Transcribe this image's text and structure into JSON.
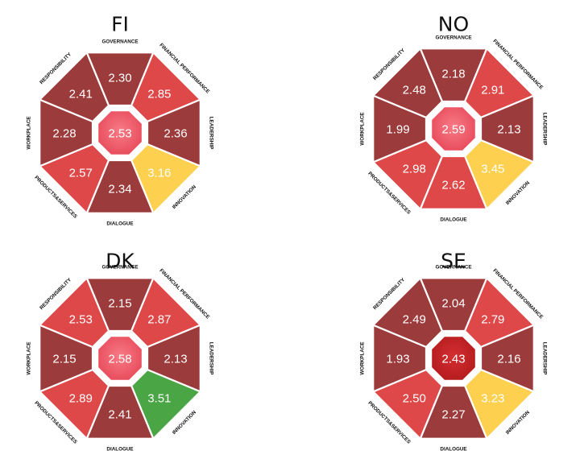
{
  "chart_data": [
    {
      "type": "octagon-score",
      "title": "FI",
      "center": 2.53,
      "dimensions": [
        "GOVERNANCE",
        "FINANCIAL PERFORMANCE",
        "LEADERSHIP",
        "INNOVATION",
        "DIALOGUE",
        "PRODUCTS&SERVICES",
        "WORKPLACE",
        "RESPONSIBILITY"
      ],
      "values": [
        "2.30",
        "2.85",
        "2.36",
        "3.16",
        "2.34",
        "2.57",
        "2.28",
        "2.41"
      ]
    },
    {
      "type": "octagon-score",
      "title": "NO",
      "center": 2.59,
      "dimensions": [
        "GOVERNANCE",
        "FINANCIAL PERFORMANCE",
        "LEADERSHIP",
        "INNOVATION",
        "DIALOGUE",
        "PRODUCTS&SERVICES",
        "WORKPLACE",
        "RESPONSIBILITY"
      ],
      "values": [
        "2.18",
        "2.91",
        "2.13",
        "3.45",
        "2.62",
        "2.98",
        "1.99",
        "2.48"
      ]
    },
    {
      "type": "octagon-score",
      "title": "DK",
      "center": 2.58,
      "dimensions": [
        "GOVERNANCE",
        "FINANCIAL PERFORMANCE",
        "LEADERSHIP",
        "INNOVATION",
        "DIALOGUE",
        "PRODUCTS&SERVICES",
        "WORKPLACE",
        "RESPONSIBILITY"
      ],
      "values": [
        "2.15",
        "2.87",
        "2.13",
        "3.51",
        "2.41",
        "2.89",
        "2.15",
        "2.53"
      ]
    },
    {
      "type": "octagon-score",
      "title": "SE",
      "center": 2.43,
      "dimensions": [
        "GOVERNANCE",
        "FINANCIAL PERFORMANCE",
        "LEADERSHIP",
        "INNOVATION",
        "DIALOGUE",
        "PRODUCTS&SERVICES",
        "WORKPLACE",
        "RESPONSIBILITY"
      ],
      "values": [
        "2.04",
        "2.79",
        "2.16",
        "3.23",
        "2.27",
        "2.50",
        "1.93",
        "2.49"
      ]
    }
  ],
  "colors": {
    "dark_red": "#9c3b3b",
    "red": "#df4848",
    "yellow": "#fdd14f",
    "green": "#4aa544",
    "center_light": "#e84a5a",
    "center_dark": "#b41a1c"
  },
  "color_scale": [
    {
      "max": 2.5,
      "color": "#9c3b3b"
    },
    {
      "max": 3.0,
      "color": "#df4848"
    },
    {
      "max": 3.5,
      "color": "#fdd14f"
    },
    {
      "max": 99,
      "color": "#4aa544"
    }
  ]
}
